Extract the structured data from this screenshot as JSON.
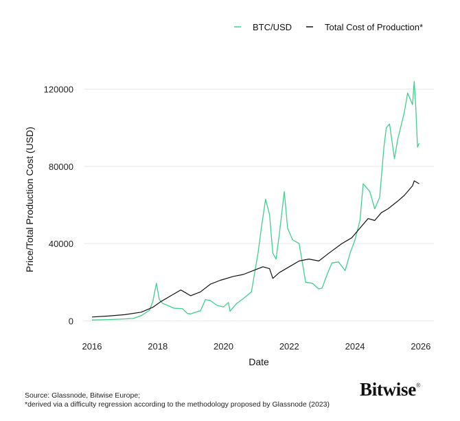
{
  "legend": {
    "btc_label": "BTC/USD",
    "cost_label": "Total Cost of Production*",
    "btc_color": "#3ecf8e",
    "cost_color": "#111111"
  },
  "footer": {
    "source_line": "Source: Glassnode, Bitwise Europe;",
    "note_line": "*derived via a difficulty regression according to the methodology proposed by Glassnode (2023)"
  },
  "brand": {
    "name": "Bitwise",
    "mark": "®"
  },
  "chart_data": {
    "type": "line",
    "xlabel": "Date",
    "ylabel": "Price/Total Production Cost (USD)",
    "xlim": [
      2015.75,
      2026.4
    ],
    "ylim": [
      -2000,
      127000
    ],
    "x_ticks": [
      2016,
      2018,
      2020,
      2022,
      2024,
      2026
    ],
    "y_ticks": [
      0,
      40000,
      80000,
      120000
    ],
    "grid": "horizontal",
    "legend_position": "top-right",
    "series": [
      {
        "name": "BTC/USD",
        "color": "#3ecf8e",
        "points": [
          [
            2016.0,
            430
          ],
          [
            2016.5,
            650
          ],
          [
            2017.0,
            1000
          ],
          [
            2017.25,
            1200
          ],
          [
            2017.5,
            2700
          ],
          [
            2017.75,
            5500
          ],
          [
            2017.85,
            10000
          ],
          [
            2017.96,
            19500
          ],
          [
            2018.05,
            11000
          ],
          [
            2018.15,
            9000
          ],
          [
            2018.3,
            8000
          ],
          [
            2018.5,
            6500
          ],
          [
            2018.75,
            6300
          ],
          [
            2018.9,
            3800
          ],
          [
            2019.0,
            3600
          ],
          [
            2019.3,
            5200
          ],
          [
            2019.45,
            11000
          ],
          [
            2019.6,
            10500
          ],
          [
            2019.8,
            8000
          ],
          [
            2020.0,
            7200
          ],
          [
            2020.15,
            9500
          ],
          [
            2020.2,
            5000
          ],
          [
            2020.4,
            9000
          ],
          [
            2020.6,
            11500
          ],
          [
            2020.85,
            15000
          ],
          [
            2020.95,
            25000
          ],
          [
            2021.05,
            35000
          ],
          [
            2021.15,
            48000
          ],
          [
            2021.28,
            63000
          ],
          [
            2021.4,
            55000
          ],
          [
            2021.5,
            35000
          ],
          [
            2021.6,
            32000
          ],
          [
            2021.7,
            45000
          ],
          [
            2021.85,
            67000
          ],
          [
            2021.95,
            48000
          ],
          [
            2022.1,
            42000
          ],
          [
            2022.3,
            40000
          ],
          [
            2022.4,
            30000
          ],
          [
            2022.5,
            20000
          ],
          [
            2022.7,
            19500
          ],
          [
            2022.9,
            16500
          ],
          [
            2023.0,
            17000
          ],
          [
            2023.15,
            24000
          ],
          [
            2023.3,
            30000
          ],
          [
            2023.5,
            30500
          ],
          [
            2023.7,
            26000
          ],
          [
            2023.85,
            35000
          ],
          [
            2024.0,
            42000
          ],
          [
            2024.15,
            52000
          ],
          [
            2024.25,
            71000
          ],
          [
            2024.45,
            67000
          ],
          [
            2024.6,
            58000
          ],
          [
            2024.75,
            64000
          ],
          [
            2024.88,
            90000
          ],
          [
            2024.95,
            100000
          ],
          [
            2025.05,
            102000
          ],
          [
            2025.2,
            84000
          ],
          [
            2025.3,
            94000
          ],
          [
            2025.5,
            108000
          ],
          [
            2025.6,
            118000
          ],
          [
            2025.75,
            112000
          ],
          [
            2025.8,
            124000
          ],
          [
            2025.85,
            110000
          ],
          [
            2025.9,
            90000
          ],
          [
            2025.95,
            92000
          ]
        ]
      },
      {
        "name": "Total Cost of Production*",
        "color": "#111111",
        "points": [
          [
            2016.0,
            2000
          ],
          [
            2016.5,
            2500
          ],
          [
            2017.0,
            3200
          ],
          [
            2017.5,
            4500
          ],
          [
            2017.85,
            7000
          ],
          [
            2018.1,
            10000
          ],
          [
            2018.4,
            13000
          ],
          [
            2018.7,
            16000
          ],
          [
            2018.85,
            14500
          ],
          [
            2019.0,
            13000
          ],
          [
            2019.3,
            15000
          ],
          [
            2019.6,
            19000
          ],
          [
            2019.9,
            21000
          ],
          [
            2020.3,
            23000
          ],
          [
            2020.6,
            24000
          ],
          [
            2020.9,
            26000
          ],
          [
            2021.2,
            28000
          ],
          [
            2021.4,
            27000
          ],
          [
            2021.5,
            22000
          ],
          [
            2021.7,
            25000
          ],
          [
            2022.0,
            28000
          ],
          [
            2022.3,
            31000
          ],
          [
            2022.6,
            32000
          ],
          [
            2022.9,
            31000
          ],
          [
            2023.2,
            35000
          ],
          [
            2023.6,
            40000
          ],
          [
            2023.9,
            43000
          ],
          [
            2024.2,
            49000
          ],
          [
            2024.4,
            53000
          ],
          [
            2024.6,
            52000
          ],
          [
            2024.8,
            56000
          ],
          [
            2025.0,
            58000
          ],
          [
            2025.3,
            62000
          ],
          [
            2025.5,
            65000
          ],
          [
            2025.75,
            70000
          ],
          [
            2025.8,
            72500
          ],
          [
            2025.95,
            71000
          ]
        ]
      }
    ]
  }
}
